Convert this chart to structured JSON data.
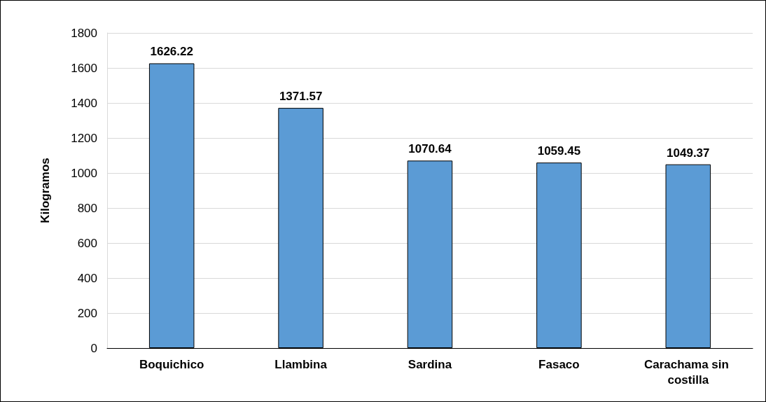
{
  "chart_data": {
    "type": "bar",
    "ylabel": "Kilogramos",
    "categories": [
      "Boquichico",
      "Llambina",
      "Sardina",
      "Fasaco",
      "Carachama sin costilla"
    ],
    "values": [
      1626.22,
      1371.57,
      1070.64,
      1059.45,
      1049.37
    ],
    "color": "#5b9bd5",
    "ylim": [
      0,
      1800
    ],
    "yticks": [
      0,
      200,
      400,
      600,
      800,
      1000,
      1200,
      1400,
      1600,
      1800
    ],
    "grid": "y",
    "data_labels": true
  }
}
